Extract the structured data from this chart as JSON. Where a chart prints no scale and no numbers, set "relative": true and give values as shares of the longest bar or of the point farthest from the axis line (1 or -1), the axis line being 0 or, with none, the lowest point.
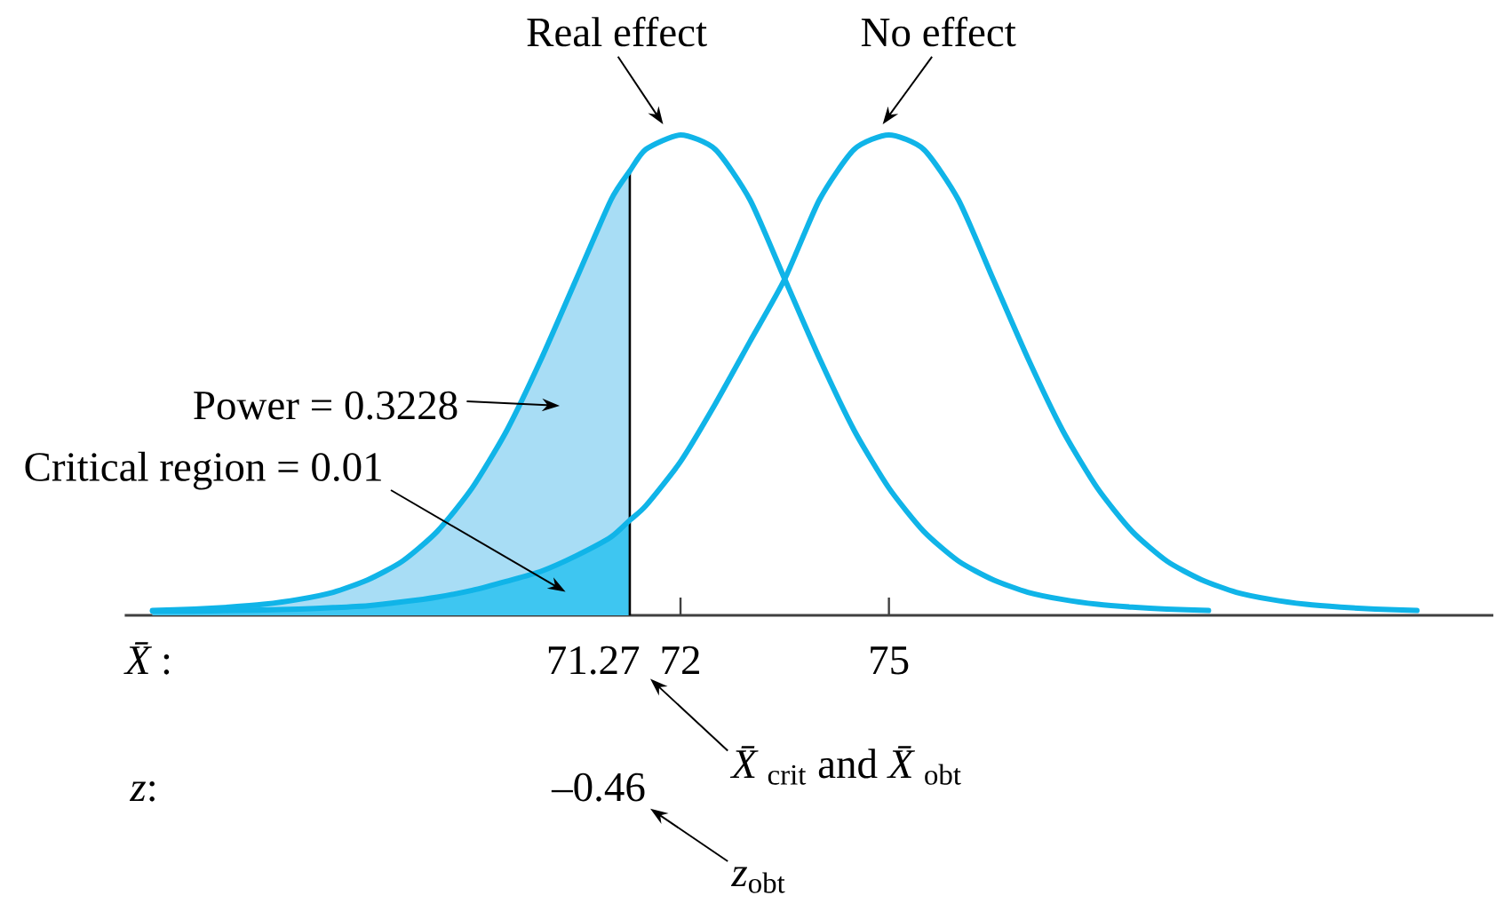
{
  "chart_data": {
    "type": "line",
    "relative": true,
    "xlim": [
      64.0,
      83.7
    ],
    "xticks": [
      72,
      75
    ],
    "xlabel": "*X̄*:",
    "series": [
      {
        "type": "area",
        "color": "#a8ddf5",
        "x": [
          64.4,
          65,
          65.5,
          66,
          66.5,
          67,
          67.5,
          68,
          68.5,
          69,
          69.5,
          70,
          70.5,
          71,
          71.27
        ],
        "values": [
          0.01,
          0.013,
          0.017,
          0.023,
          0.033,
          0.048,
          0.074,
          0.113,
          0.175,
          0.265,
          0.385,
          0.535,
          0.7,
          0.865,
          0.925
        ]
      },
      {
        "type": "area",
        "color": "#3ec6f1",
        "x": [
          64.4,
          65,
          65.5,
          66,
          66.5,
          67,
          67.5,
          68,
          68.5,
          69,
          69.5,
          70,
          70.5,
          71,
          71.27
        ],
        "values": [
          0.009,
          0.009,
          0.01,
          0.011,
          0.013,
          0.016,
          0.02,
          0.028,
          0.038,
          0.052,
          0.071,
          0.092,
          0.124,
          0.163,
          0.198
        ]
      },
      {
        "name": "Real effect",
        "color": "#10b4e8",
        "x": [
          64.4,
          65,
          65.5,
          66,
          66.5,
          67,
          67.5,
          68,
          68.5,
          69,
          69.5,
          70,
          70.5,
          71,
          71.27,
          71.5,
          72,
          72.5,
          73,
          73.5,
          74,
          74.5,
          75,
          75.5,
          76,
          76.5,
          77,
          77.5,
          78,
          78.5,
          79,
          79.6
        ],
        "values": [
          0.01,
          0.013,
          0.017,
          0.023,
          0.033,
          0.048,
          0.074,
          0.113,
          0.175,
          0.265,
          0.385,
          0.535,
          0.7,
          0.865,
          0.925,
          0.97,
          1.0,
          0.97,
          0.865,
          0.7,
          0.535,
          0.385,
          0.265,
          0.175,
          0.113,
          0.074,
          0.048,
          0.033,
          0.023,
          0.017,
          0.013,
          0.01
        ]
      },
      {
        "name": "No effect",
        "color": "#10b4e8",
        "x": [
          64.4,
          65,
          65.5,
          66,
          66.5,
          67,
          67.5,
          68,
          68.5,
          69,
          69.5,
          70,
          70.5,
          71,
          71.27,
          71.5,
          72,
          72.5,
          73,
          73.5,
          74,
          74.5,
          75,
          75.5,
          76,
          76.5,
          77,
          77.5,
          78,
          78.5,
          79,
          79.5,
          80,
          80.5,
          81,
          81.5,
          82,
          82.6
        ],
        "values": [
          0.009,
          0.009,
          0.01,
          0.011,
          0.013,
          0.016,
          0.02,
          0.028,
          0.038,
          0.052,
          0.071,
          0.092,
          0.124,
          0.163,
          0.198,
          0.228,
          0.32,
          0.44,
          0.57,
          0.7,
          0.865,
          0.97,
          1.0,
          0.97,
          0.865,
          0.7,
          0.535,
          0.385,
          0.265,
          0.175,
          0.113,
          0.074,
          0.048,
          0.033,
          0.023,
          0.017,
          0.013,
          0.01
        ]
      }
    ],
    "ref_lines": [
      {
        "axis": "x",
        "value": 71.27,
        "label": "71.27",
        "color": "#000000"
      }
    ],
    "annotations": [
      "Power = 0.3228",
      "Critical region = 0.01",
      "*z*:",
      "–0.46",
      "*X̄*$_{crit}$ and *X̄*$_{obt}$",
      "*z*$_{obt}$"
    ]
  }
}
